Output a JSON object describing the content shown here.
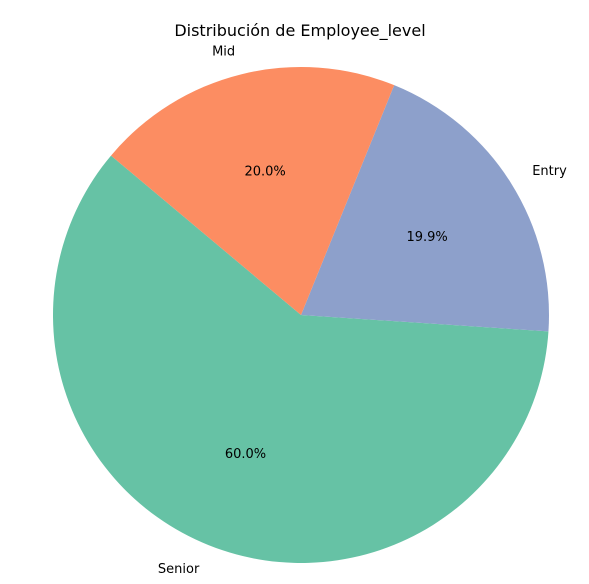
{
  "chart_data": {
    "type": "pie",
    "title": "Distribución de Employee_level",
    "categories": [
      "Senior",
      "Entry",
      "Mid"
    ],
    "values": [
      60.0,
      19.9,
      20.0
    ],
    "value_labels": [
      "60.0%",
      "19.9%",
      "20.0%"
    ],
    "colors": [
      "#66c2a5",
      "#8da0cb",
      "#fc8d62"
    ],
    "start_angle_deg": 140,
    "direction": "counterclockwise",
    "legend": "none"
  }
}
